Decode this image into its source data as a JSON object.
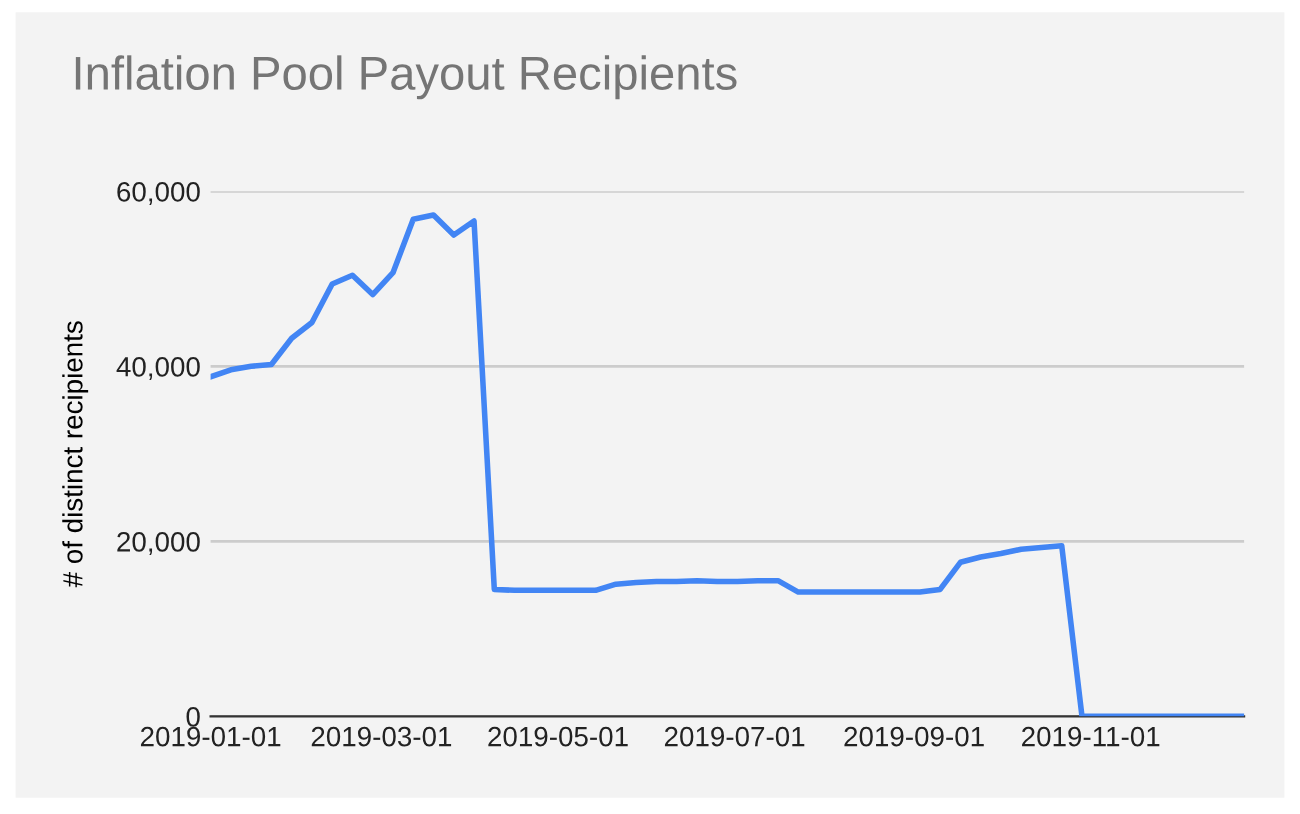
{
  "chart_data": {
    "type": "line",
    "title": "Inflation Pool Payout Recipients",
    "ylabel": "# of distinct recipients",
    "x": [
      "2019-01-01",
      "2019-01-08",
      "2019-01-15",
      "2019-01-22",
      "2019-01-29",
      "2019-02-05",
      "2019-02-12",
      "2019-02-19",
      "2019-02-26",
      "2019-03-05",
      "2019-03-12",
      "2019-03-19",
      "2019-03-26",
      "2019-04-02",
      "2019-04-09",
      "2019-04-16",
      "2019-04-23",
      "2019-04-30",
      "2019-05-07",
      "2019-05-14",
      "2019-05-21",
      "2019-05-28",
      "2019-06-04",
      "2019-06-11",
      "2019-06-18",
      "2019-06-25",
      "2019-07-02",
      "2019-07-09",
      "2019-07-16",
      "2019-07-23",
      "2019-07-30",
      "2019-08-06",
      "2019-08-13",
      "2019-08-20",
      "2019-08-27",
      "2019-09-03",
      "2019-09-10",
      "2019-09-17",
      "2019-09-24",
      "2019-10-01",
      "2019-10-08",
      "2019-10-15",
      "2019-10-22",
      "2019-10-29",
      "2019-11-05",
      "2019-11-12",
      "2019-11-19",
      "2019-11-26",
      "2019-12-03",
      "2019-12-10",
      "2019-12-17",
      "2019-12-24"
    ],
    "series": [
      {
        "color": "#4285f4",
        "values": [
          38800,
          39600,
          40000,
          40200,
          43200,
          45000,
          49400,
          50400,
          48200,
          50700,
          56800,
          57300,
          55000,
          56600,
          14500,
          14400,
          14400,
          14400,
          14400,
          14400,
          15100,
          15300,
          15400,
          15400,
          15500,
          15400,
          15400,
          15500,
          15500,
          14200,
          14200,
          14200,
          14200,
          14200,
          14200,
          14200,
          14500,
          17600,
          18200,
          18600,
          19100,
          19300,
          19500,
          0,
          0,
          0,
          0,
          0,
          0,
          0,
          0,
          0
        ]
      }
    ],
    "xlim": [
      "2019-01-01",
      "2019-12-24"
    ],
    "xticks": [
      "2019-01-01",
      "2019-03-01",
      "2019-05-01",
      "2019-07-01",
      "2019-09-01",
      "2019-11-01"
    ],
    "ylim": [
      0,
      60000
    ],
    "yticks": [
      {
        "value": 0,
        "label": "0"
      },
      {
        "value": 20000,
        "label": "20,000"
      },
      {
        "value": 40000,
        "label": "40,000"
      },
      {
        "value": 60000,
        "label": "60,000"
      }
    ],
    "grid": "y",
    "marker": "none",
    "line_style": "solid"
  }
}
